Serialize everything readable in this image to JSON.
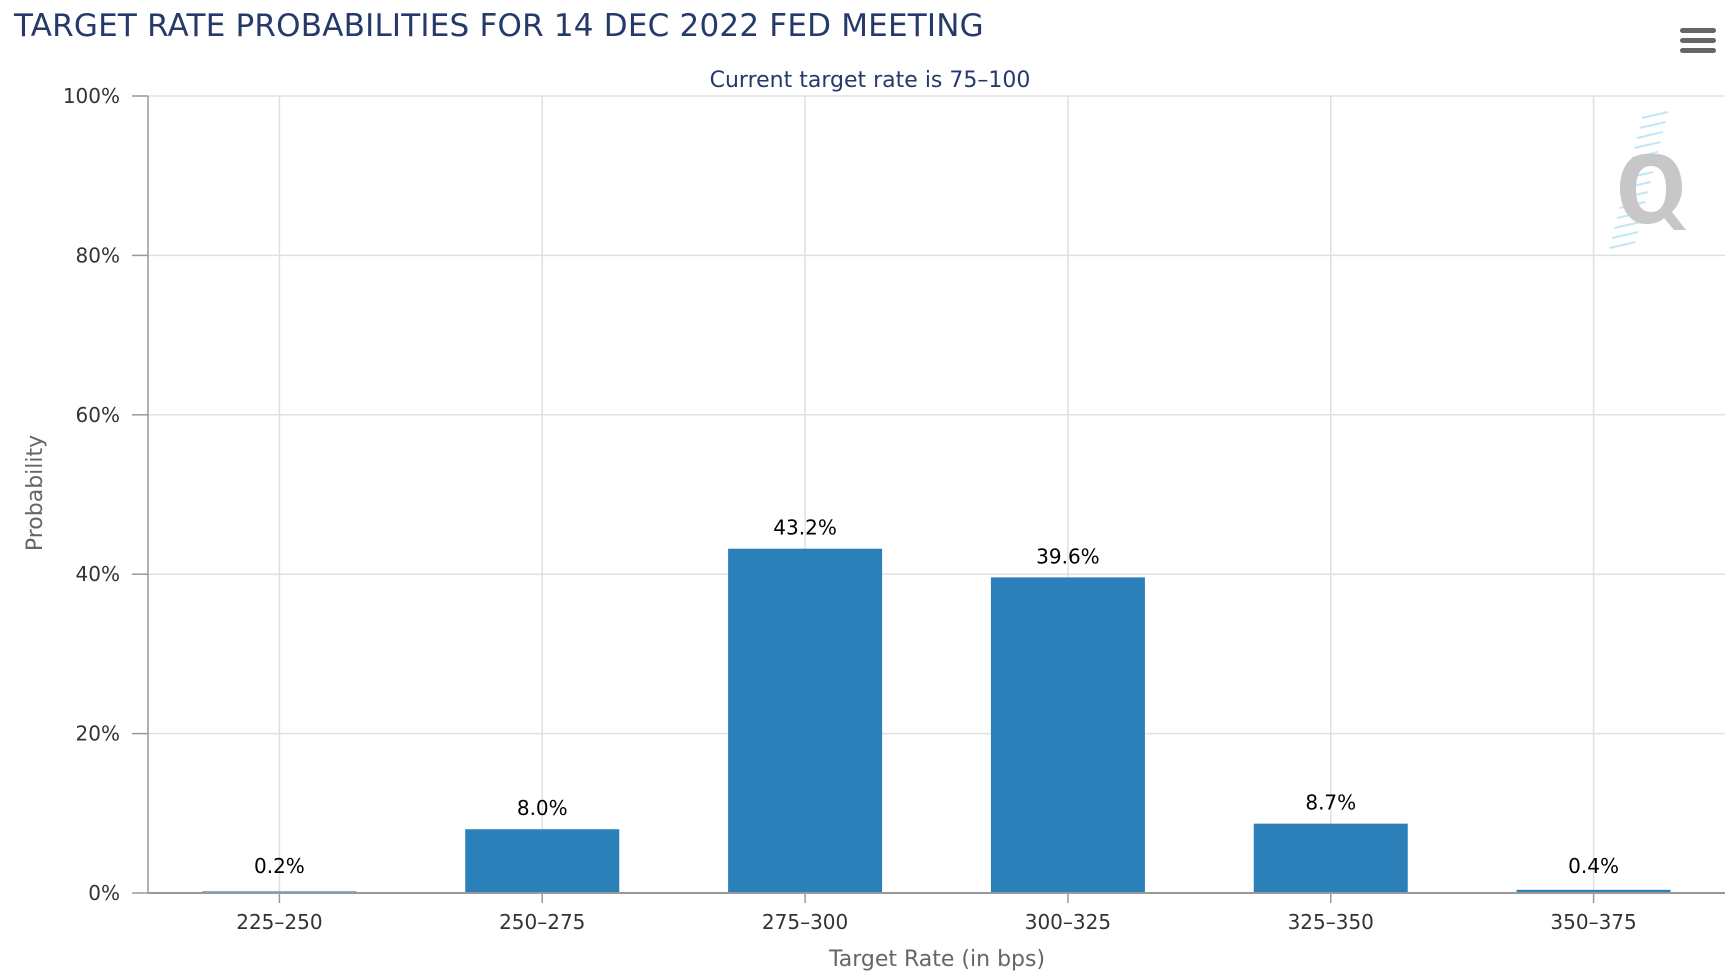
{
  "chart_data": {
    "type": "bar",
    "title": "TARGET RATE PROBABILITIES FOR 14 DEC 2022 FED MEETING",
    "subtitle": "Current target rate is 75–100",
    "xlabel": "Target Rate (in bps)",
    "ylabel": "Probability",
    "categories": [
      "225–250",
      "250–275",
      "275–300",
      "300–325",
      "325–350",
      "350–375"
    ],
    "values": [
      0.2,
      8.0,
      43.2,
      39.6,
      8.7,
      0.4
    ],
    "data_labels": [
      "0.2%",
      "8.0%",
      "43.2%",
      "39.6%",
      "8.7%",
      "0.4%"
    ],
    "ylim": [
      0,
      100
    ],
    "yticks": [
      0,
      20,
      40,
      60,
      80,
      100
    ],
    "ytick_labels": [
      "0%",
      "20%",
      "40%",
      "60%",
      "80%",
      "100%"
    ],
    "grid": true,
    "bar_color": "#2b80b9",
    "legend": "none"
  },
  "colors": {
    "title": "#253a6b",
    "grid": "#e0e0e0",
    "axis": "#999999",
    "watermark": "#c7c7c7",
    "watermark_accent": "#8fd3ef"
  },
  "icons": {
    "menu": "hamburger-menu-icon",
    "watermark": "q-logo-icon"
  }
}
